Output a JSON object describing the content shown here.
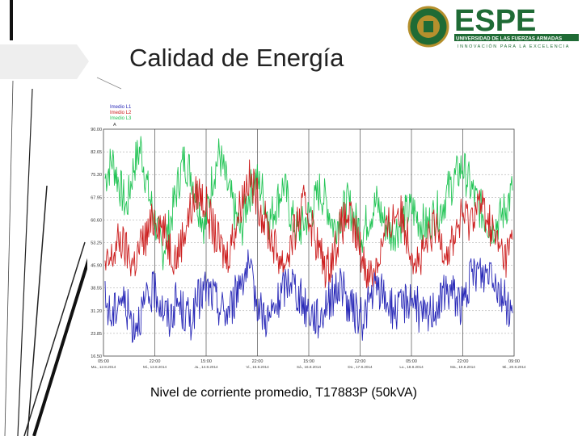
{
  "slide": {
    "title": "Calidad de Energía",
    "caption": "Nivel de corriente promedio, T17883P (50kVA)"
  },
  "logo": {
    "brand": "ESPE",
    "subtitle": "UNIVERSIDAD DE LAS FUERZAS ARMADAS",
    "tagline": "INNOVACIÓN PARA LA EXCELENCIA"
  },
  "colors": {
    "l1": "#2a2ab8",
    "l2": "#cc1f1f",
    "l3": "#22c455",
    "brand_green": "#1f6b35",
    "brand_gold": "#b5902d"
  },
  "chart_data": {
    "type": "line",
    "legend": [
      "Imedio L1",
      "Imedio L2",
      "Imedio L3"
    ],
    "y_unit": "A",
    "ylim": [
      16.0,
      90.0
    ],
    "y_ticks": [
      "90.00",
      "82.65",
      "75.30",
      "67.95",
      "60.60",
      "53.25",
      "45.90",
      "38.55",
      "31.20",
      "23.85",
      "16.50"
    ],
    "x_ticks": [
      "05:00",
      "22:00",
      "15:00",
      "22:00",
      "15:00",
      "22:00",
      "05:00",
      "22:00",
      "09:00"
    ],
    "x_ticks_date": [
      "Ma., 12.8.2014",
      "Mi., 13.8.2014",
      "Ju., 14.8.2014",
      "Vi., 15.8.2014",
      "Sá., 16.8.2014",
      "Do., 17.8.2014",
      "Lu., 18.8.2014",
      "Ma., 19.8.2014",
      "Mi., 20.8.2014"
    ],
    "grid": true,
    "series": [
      {
        "name": "Imedio L3",
        "values": [
          74,
          80,
          72,
          64,
          78,
          84,
          70,
          60,
          50,
          58,
          70,
          80,
          76,
          66,
          58,
          74,
          82,
          72,
          64,
          56,
          68,
          74,
          70,
          60,
          66,
          72,
          62,
          56,
          60,
          64,
          70,
          66,
          58,
          62,
          66,
          60,
          56,
          62,
          66,
          60,
          56,
          58,
          62,
          64,
          60,
          58,
          62,
          64,
          70,
          74,
          78,
          72,
          66,
          62,
          58,
          60,
          64,
          70
        ]
      },
      {
        "name": "Imedio L2",
        "values": [
          44,
          48,
          54,
          50,
          46,
          52,
          56,
          62,
          58,
          52,
          48,
          56,
          64,
          70,
          66,
          58,
          52,
          48,
          56,
          66,
          74,
          70,
          62,
          56,
          50,
          46,
          52,
          60,
          66,
          58,
          50,
          44,
          50,
          58,
          62,
          56,
          48,
          42,
          46,
          54,
          60,
          64,
          58,
          50,
          46,
          52,
          58,
          54,
          50,
          56,
          62,
          60,
          66,
          64,
          58,
          52,
          48,
          54
        ]
      },
      {
        "name": "Imedio L1",
        "values": [
          34,
          28,
          36,
          32,
          26,
          30,
          34,
          38,
          32,
          28,
          34,
          30,
          28,
          34,
          38,
          36,
          32,
          30,
          34,
          42,
          44,
          36,
          30,
          28,
          32,
          38,
          42,
          36,
          32,
          30,
          28,
          34,
          36,
          40,
          32,
          30,
          28,
          34,
          38,
          36,
          32,
          30,
          34,
          36,
          30,
          28,
          32,
          34,
          38,
          36,
          32,
          40,
          44,
          42,
          46,
          38,
          34,
          30
        ]
      }
    ]
  }
}
